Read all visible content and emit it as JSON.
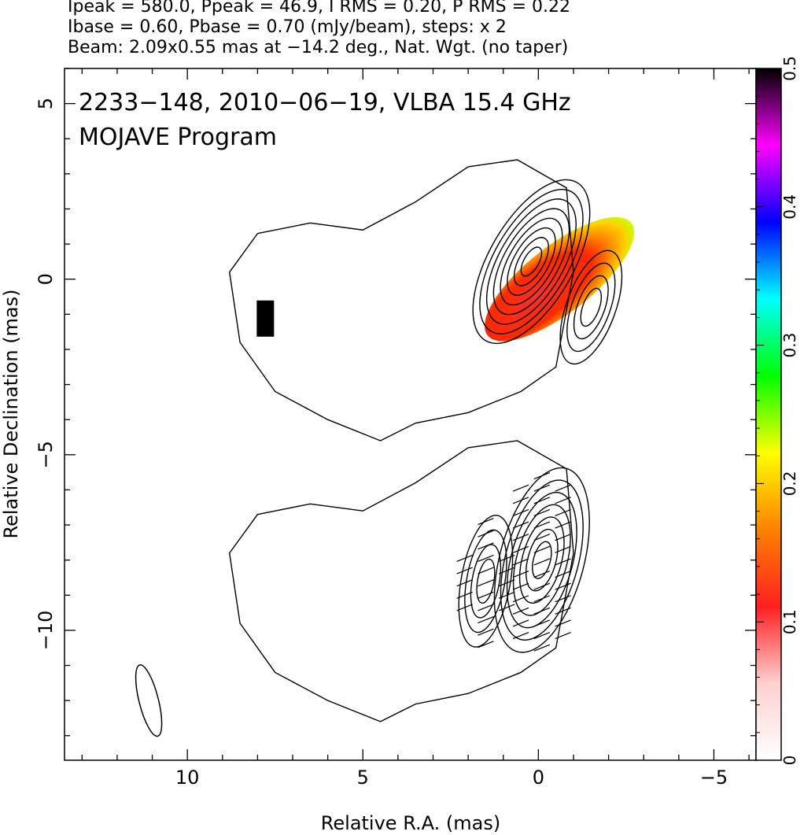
{
  "header": {
    "line1": "Ipeak = 580.0, Ppeak = 46.9, I RMS = 0.20, P RMS = 0.22",
    "line2": "Ibase = 0.60, Pbase = 0.70 (mJy/beam), steps: x 2",
    "line3": "Beam: 2.09x0.55 mas at −14.2 deg., Nat. Wgt. (no taper)"
  },
  "chart_data": {
    "type": "heatmap",
    "title": "2233−148, 2010−06−19, VLBA 15.4 GHz",
    "subtitle": "MOJAVE Program",
    "xlabel": "Relative R.A. (mas)",
    "ylabel": "Relative Declination (mas)",
    "xlim": [
      13.5,
      -6.2
    ],
    "ylim": [
      -13.7,
      6.0
    ],
    "x_ticks": [
      10,
      5,
      0,
      -5
    ],
    "x_tick_labels": [
      "10",
      "5",
      "0",
      "−5"
    ],
    "y_ticks": [
      5,
      0,
      -5,
      -10
    ],
    "y_tick_labels": [
      "5",
      "0",
      "−5",
      "−10"
    ],
    "colorbar": {
      "range": [
        0,
        0.5
      ],
      "ticks": [
        0,
        0.1,
        0.2,
        0.3,
        0.4,
        0.5
      ],
      "tick_labels": [
        "0",
        "0.1",
        "0.2",
        "0.3",
        "0.4",
        "0.5"
      ],
      "colors": [
        "#ffffff",
        "#ffd0d0",
        "#ff2020",
        "#ff8000",
        "#ffff00",
        "#00ff00",
        "#00ffff",
        "#0000ff",
        "#ff00ff",
        "#000000"
      ]
    },
    "beam": {
      "major_mas": 2.09,
      "minor_mas": 0.55,
      "pa_deg": -14.2,
      "center": [
        11.1,
        -12.0
      ]
    },
    "upper_panel": {
      "description_free": true,
      "core": [
        0.2,
        0.5
      ],
      "cores": [
        {
          "x": 0.2,
          "y": 0.5,
          "rx": 1.2,
          "ry": 2.6,
          "pa": 30,
          "levels": 8
        },
        {
          "x": -1.5,
          "y": -0.8,
          "rx": 0.7,
          "ry": 1.7,
          "pa": 20,
          "levels": 4
        }
      ],
      "fpol_region_main": {
        "center": [
          -0.6,
          0.0
        ],
        "value": 0.12
      },
      "fpol_region_knot": {
        "center": [
          7.8,
          -1.1
        ],
        "value": 0.5
      }
    },
    "lower_panel": {
      "offset_dec": -8.5,
      "cores": [
        {
          "x": -0.1,
          "y": -8.0,
          "rx": 1.2,
          "ry": 2.7,
          "pa": 15,
          "levels": 7
        },
        {
          "x": 1.5,
          "y": -8.6,
          "rx": 0.7,
          "ry": 1.9,
          "pa": 10,
          "levels": 4
        }
      ]
    }
  }
}
